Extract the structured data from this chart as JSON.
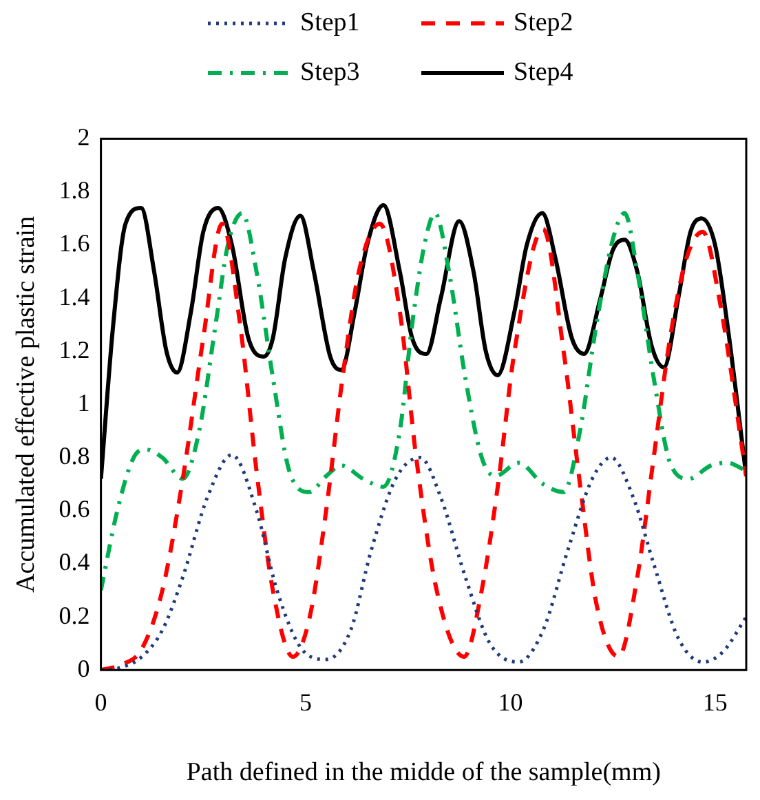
{
  "chart_data": {
    "type": "line",
    "xlabel": "Path defined in the midde of the sample(mm)",
    "ylabel": "Accumulated effective plastic strain",
    "xlim": [
      0,
      15.76
    ],
    "xticks": [
      0,
      5,
      10,
      15
    ],
    "ylim": [
      0,
      2
    ],
    "yticks": [
      0,
      0.2,
      0.4,
      0.6,
      0.8,
      1,
      1.2,
      1.4,
      1.6,
      1.8,
      2
    ],
    "grid": false,
    "legend": "top",
    "marker": "none",
    "series": [
      {
        "name": "Step1",
        "color": "#1f3a7a",
        "line_style": "dotted",
        "x": [
          0,
          0.5,
          1,
          1.5,
          2,
          2.6,
          3.2,
          3.8,
          4.3,
          4.9,
          5.5,
          6.1,
          6.6,
          7.2,
          7.8,
          8.3,
          8.9,
          9.5,
          10.2,
          10.8,
          11.4,
          12,
          12.46,
          13,
          13.5,
          14.1,
          14.7,
          15.2,
          15.76
        ],
        "values": [
          0,
          0.01,
          0.05,
          0.15,
          0.35,
          0.65,
          0.81,
          0.6,
          0.3,
          0.08,
          0.04,
          0.15,
          0.45,
          0.72,
          0.8,
          0.65,
          0.35,
          0.1,
          0.03,
          0.15,
          0.45,
          0.72,
          0.8,
          0.65,
          0.4,
          0.12,
          0.03,
          0.07,
          0.2
        ]
      },
      {
        "name": "Step2",
        "color": "#ff0000",
        "line_style": "dashed",
        "x": [
          0,
          0.5,
          1,
          1.5,
          2,
          2.5,
          2.96,
          3.4,
          3.8,
          4.2,
          4.69,
          5.1,
          5.5,
          5.9,
          6.3,
          6.81,
          7.3,
          7.7,
          8.2,
          8.87,
          9.3,
          9.7,
          10.1,
          10.8,
          11.3,
          11.7,
          12.1,
          12.64,
          13.1,
          13.5,
          13.9,
          14.3,
          14.7,
          15.1,
          15.76
        ],
        "values": [
          0,
          0.02,
          0.08,
          0.3,
          0.72,
          1.25,
          1.68,
          1.3,
          0.75,
          0.3,
          0.05,
          0.2,
          0.6,
          1.1,
          1.5,
          1.68,
          1.35,
          0.8,
          0.3,
          0.05,
          0.3,
          0.7,
          1.2,
          1.66,
          1.2,
          0.7,
          0.25,
          0.05,
          0.35,
          0.8,
          1.25,
          1.55,
          1.65,
          1.4,
          0.73
        ]
      },
      {
        "name": "Step3",
        "color": "#00b050",
        "line_style": "dashdot",
        "x": [
          0,
          0.4,
          0.8,
          1.1,
          1.5,
          2,
          2.4,
          2.8,
          3.1,
          3.45,
          3.8,
          4.2,
          4.6,
          5.09,
          5.5,
          5.87,
          6.4,
          6.9,
          7.3,
          7.6,
          7.9,
          8.16,
          8.5,
          8.9,
          9.3,
          9.63,
          10.2,
          10.8,
          11.3,
          11.7,
          12.1,
          12.5,
          12.79,
          13.1,
          13.5,
          13.9,
          14.35,
          14.9,
          15.3,
          15.76
        ],
        "values": [
          0.3,
          0.6,
          0.8,
          0.83,
          0.8,
          0.72,
          0.9,
          1.3,
          1.6,
          1.72,
          1.5,
          1.1,
          0.75,
          0.67,
          0.73,
          0.77,
          0.72,
          0.69,
          0.9,
          1.3,
          1.6,
          1.72,
          1.5,
          1.1,
          0.8,
          0.73,
          0.78,
          0.7,
          0.67,
          0.9,
          1.3,
          1.62,
          1.72,
          1.5,
          1.1,
          0.78,
          0.72,
          0.77,
          0.78,
          0.75
        ]
      },
      {
        "name": "Step4",
        "color": "#000000",
        "line_style": "solid",
        "x": [
          0,
          0.3,
          0.6,
          0.98,
          1.3,
          1.6,
          1.86,
          2.2,
          2.5,
          2.86,
          3.2,
          3.6,
          3.98,
          4.2,
          4.5,
          4.87,
          5.2,
          5.6,
          5.87,
          6.2,
          6.5,
          6.9,
          7.3,
          7.6,
          7.95,
          8.3,
          8.75,
          9.1,
          9.4,
          9.69,
          10.1,
          10.4,
          10.78,
          11.1,
          11.5,
          11.8,
          12.2,
          12.5,
          12.79,
          13.1,
          13.45,
          13.75,
          14.1,
          14.4,
          14.67,
          15,
          15.3,
          15.76
        ],
        "values": [
          0.72,
          1.3,
          1.68,
          1.74,
          1.5,
          1.2,
          1.12,
          1.35,
          1.65,
          1.74,
          1.6,
          1.25,
          1.18,
          1.25,
          1.55,
          1.71,
          1.5,
          1.18,
          1.13,
          1.35,
          1.6,
          1.75,
          1.5,
          1.25,
          1.19,
          1.4,
          1.69,
          1.5,
          1.2,
          1.11,
          1.35,
          1.6,
          1.72,
          1.55,
          1.25,
          1.19,
          1.4,
          1.58,
          1.62,
          1.5,
          1.22,
          1.14,
          1.4,
          1.65,
          1.7,
          1.6,
          1.3,
          0.73
        ]
      }
    ]
  }
}
